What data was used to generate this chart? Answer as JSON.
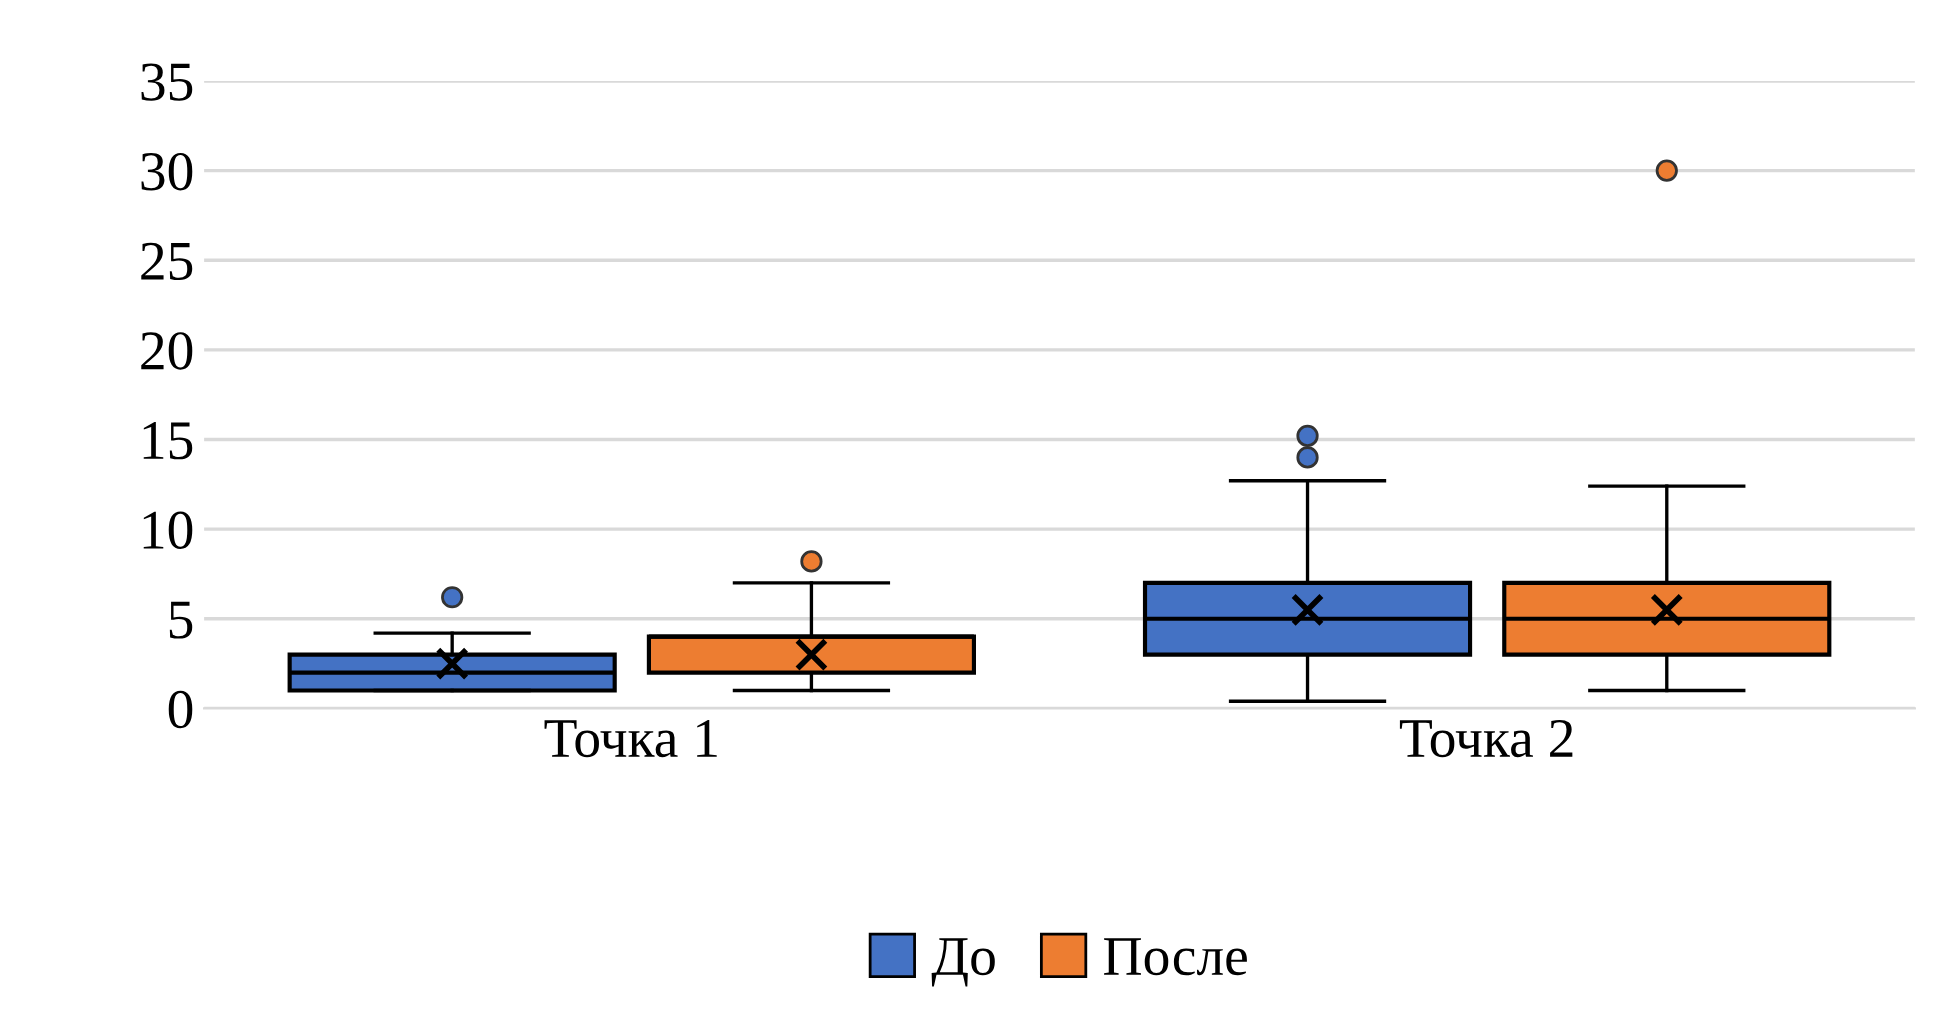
{
  "chart_data": {
    "type": "box",
    "categories": [
      "Точка 1",
      "Точка 2"
    ],
    "series": [
      {
        "name": "До",
        "color": "#4472c4",
        "boxes": [
          {
            "low": 1,
            "q1": 1,
            "median": 2,
            "q3": 3,
            "high": 4.2,
            "mean": 2.5,
            "outliers": [
              6.2
            ]
          },
          {
            "low": 0.4,
            "q1": 3,
            "median": 5,
            "q3": 7,
            "high": 12.7,
            "mean": 5.5,
            "outliers": [
              14,
              15.2
            ]
          }
        ]
      },
      {
        "name": "После",
        "color": "#ed7d31",
        "boxes": [
          {
            "low": 1,
            "q1": 2,
            "median": 4,
            "q3": 4,
            "high": 7,
            "mean": 3,
            "outliers": [
              8.2
            ]
          },
          {
            "low": 1,
            "q1": 3,
            "median": 5,
            "q3": 7,
            "high": 12.4,
            "mean": 5.5,
            "outliers": [
              30
            ]
          }
        ]
      }
    ],
    "ylim": [
      0,
      35
    ],
    "yticks": [
      0,
      5,
      10,
      15,
      20,
      25,
      30,
      35
    ],
    "grid": "y",
    "legend": "bottom",
    "marker": "circle"
  }
}
